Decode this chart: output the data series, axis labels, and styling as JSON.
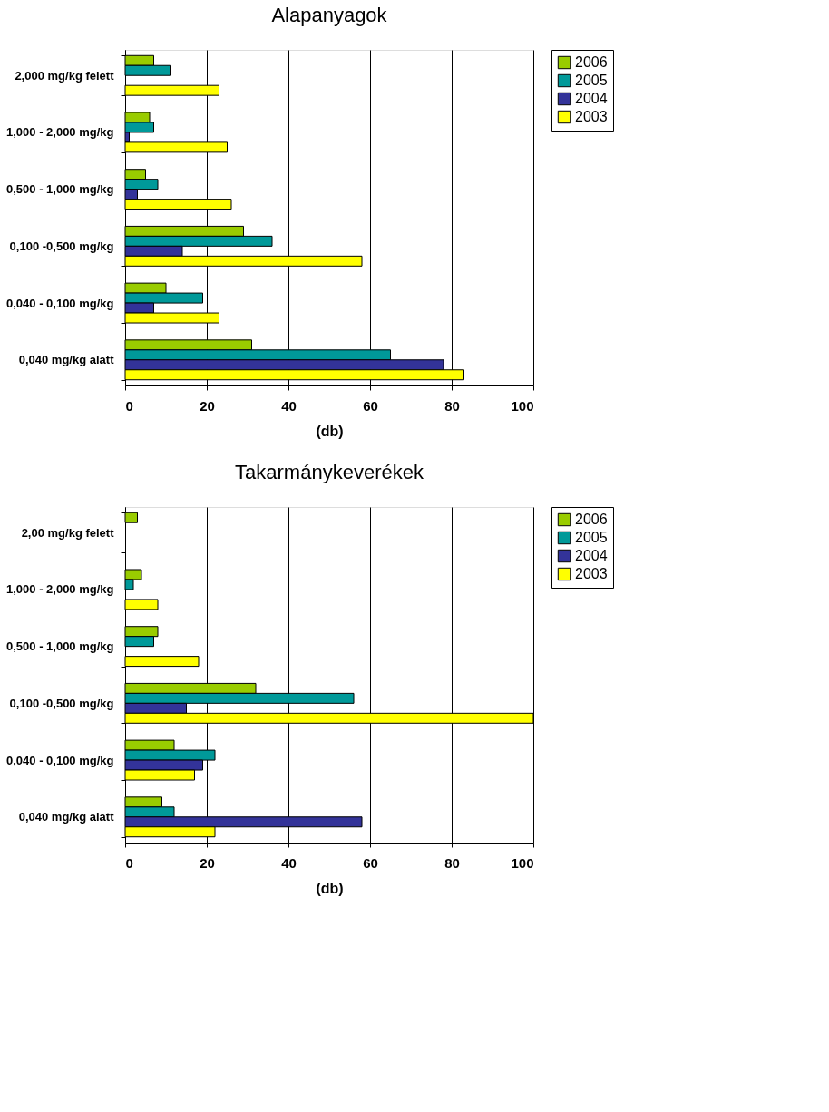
{
  "chart_data": [
    {
      "type": "bar",
      "orientation": "horizontal",
      "title": "Alapanyagok",
      "xlabel": "(db)",
      "categories": [
        "2,000 mg/kg felett",
        "1,000 - 2,000 mg/kg",
        "0,500 - 1,000 mg/kg",
        "0,100 -0,500 mg/kg",
        "0,040 - 0,100 mg/kg",
        "0,040 mg/kg alatt"
      ],
      "xlim": [
        0,
        100
      ],
      "xticks": [
        0,
        20,
        40,
        60,
        80,
        100
      ],
      "grid": "x",
      "legend": "right",
      "series": [
        {
          "name": "2006",
          "color": "#99cc00",
          "values": [
            7,
            6,
            5,
            29,
            10,
            31
          ]
        },
        {
          "name": "2005",
          "color": "#009999",
          "values": [
            11,
            7,
            8,
            36,
            19,
            65
          ]
        },
        {
          "name": "2004",
          "color": "#333399",
          "values": [
            null,
            1,
            3,
            14,
            7,
            78
          ]
        },
        {
          "name": "2003",
          "color": "#ffff00",
          "values": [
            23,
            25,
            26,
            58,
            23,
            83
          ]
        }
      ]
    },
    {
      "type": "bar",
      "orientation": "horizontal",
      "title": "Takarmánykeverékek",
      "xlabel": "(db)",
      "categories": [
        "2,00 mg/kg felett",
        "1,000 - 2,000 mg/kg",
        "0,500 - 1,000 mg/kg",
        "0,100 -0,500 mg/kg",
        "0,040 - 0,100 mg/kg",
        "0,040 mg/kg alatt"
      ],
      "xlim": [
        0,
        100
      ],
      "xticks": [
        0,
        20,
        40,
        60,
        80,
        100
      ],
      "grid": "x",
      "legend": "right",
      "series": [
        {
          "name": "2006",
          "color": "#99cc00",
          "values": [
            3,
            4,
            8,
            32,
            12,
            9
          ]
        },
        {
          "name": "2005",
          "color": "#009999",
          "values": [
            null,
            2,
            7,
            56,
            22,
            12
          ]
        },
        {
          "name": "2004",
          "color": "#333399",
          "values": [
            null,
            null,
            null,
            15,
            19,
            58
          ]
        },
        {
          "name": "2003",
          "color": "#ffff00",
          "values": [
            null,
            8,
            18,
            100,
            17,
            22
          ]
        }
      ]
    }
  ]
}
